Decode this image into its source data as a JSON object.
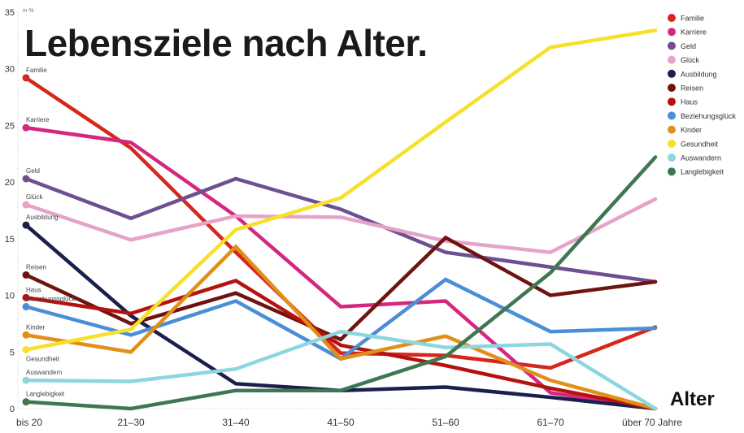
{
  "chart_data": {
    "type": "line",
    "title": "Lebensziele nach Alter.",
    "ylabel": "in %",
    "xlabel": "Alter",
    "ylim": [
      0,
      35
    ],
    "yticks": [
      0,
      5,
      10,
      15,
      20,
      25,
      30,
      35
    ],
    "categories": [
      "bis 20",
      "21–30",
      "31–40",
      "41–50",
      "51–60",
      "61–70",
      "über 70 Jahre"
    ],
    "legend_position": "right",
    "grid": false,
    "series": [
      {
        "name": "Familie",
        "color": "#d7261b",
        "values": [
          29.2,
          23.0,
          13.8,
          4.9,
          4.7,
          3.6,
          7.2
        ]
      },
      {
        "name": "Karriere",
        "color": "#d4287f",
        "values": [
          24.8,
          23.5,
          17.0,
          9.0,
          9.5,
          1.4,
          0
        ]
      },
      {
        "name": "Geld",
        "color": "#6e4f92",
        "values": [
          20.3,
          16.8,
          20.3,
          17.6,
          13.8,
          12.5,
          11.2
        ]
      },
      {
        "name": "Glück",
        "color": "#e6a3c6",
        "values": [
          18.0,
          14.9,
          17.0,
          16.9,
          14.8,
          13.8,
          18.5
        ]
      },
      {
        "name": "Ausbildung",
        "color": "#1a1f4d",
        "values": [
          16.2,
          8.2,
          2.2,
          1.6,
          1.9,
          1.0,
          0
        ]
      },
      {
        "name": "Reisen",
        "color": "#6e1410",
        "values": [
          11.8,
          7.5,
          10.2,
          6.1,
          15.1,
          10.0,
          11.2
        ]
      },
      {
        "name": "Haus",
        "color": "#b5120e",
        "values": [
          9.8,
          8.4,
          11.3,
          5.6,
          3.8,
          1.8,
          0
        ]
      },
      {
        "name": "Beziehungsglück",
        "color": "#4a8fd6",
        "values": [
          9.0,
          6.5,
          9.5,
          4.4,
          11.4,
          6.8,
          7.1
        ]
      },
      {
        "name": "Kinder",
        "color": "#e08f1a",
        "values": [
          6.5,
          5.0,
          14.3,
          4.4,
          6.4,
          2.5,
          0
        ]
      },
      {
        "name": "Gesundheit",
        "color": "#f7e02a",
        "values": [
          5.2,
          7.0,
          15.8,
          18.6,
          25.3,
          31.9,
          33.4
        ]
      },
      {
        "name": "Auswandern",
        "color": "#8dd6df",
        "values": [
          2.5,
          2.4,
          3.5,
          6.8,
          5.4,
          5.7,
          0
        ]
      },
      {
        "name": "Langlebigkeit",
        "color": "#3e7752",
        "values": [
          0.6,
          0,
          1.6,
          1.6,
          4.6,
          12.0,
          22.2
        ]
      }
    ]
  }
}
